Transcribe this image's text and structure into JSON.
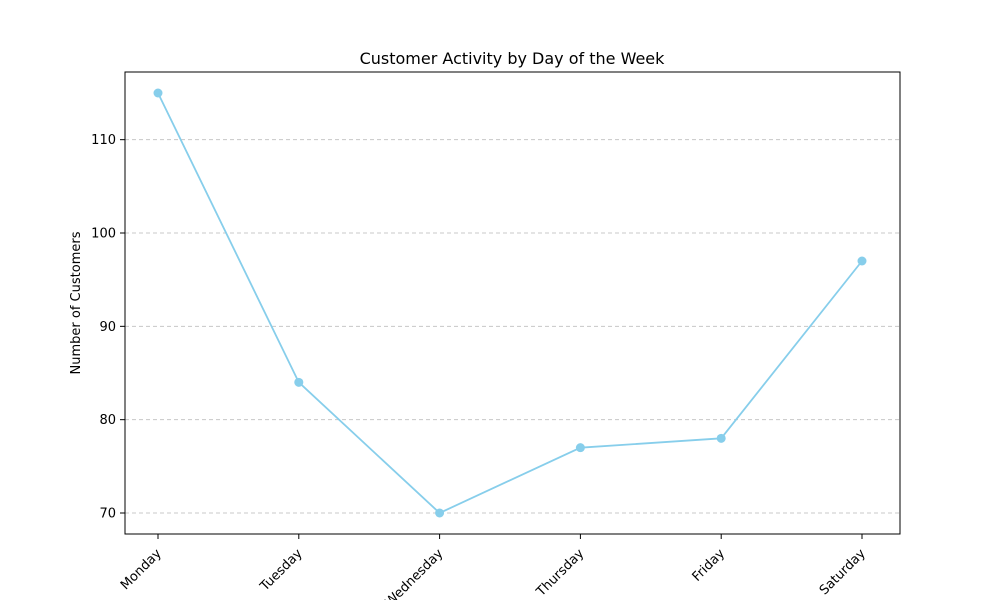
{
  "chart_data": {
    "type": "line",
    "title": "Customer Activity by Day of the Week",
    "xlabel": "",
    "ylabel": "Number of Customers",
    "categories": [
      "Monday",
      "Tuesday",
      "Wednesday",
      "Thursday",
      "Friday",
      "Saturday"
    ],
    "values": [
      115,
      84,
      70,
      77,
      78,
      97
    ],
    "ylim": [
      67.75,
      117.25
    ],
    "yticks": [
      70,
      80,
      90,
      100,
      110
    ],
    "ytick_labels": [
      "70",
      "80",
      "90",
      "100",
      "110"
    ],
    "grid": "y-dashed",
    "legend": "none",
    "line_color": "#87ceeb",
    "grid_color": "#c8c8c8",
    "xtick_rotation": -45
  }
}
